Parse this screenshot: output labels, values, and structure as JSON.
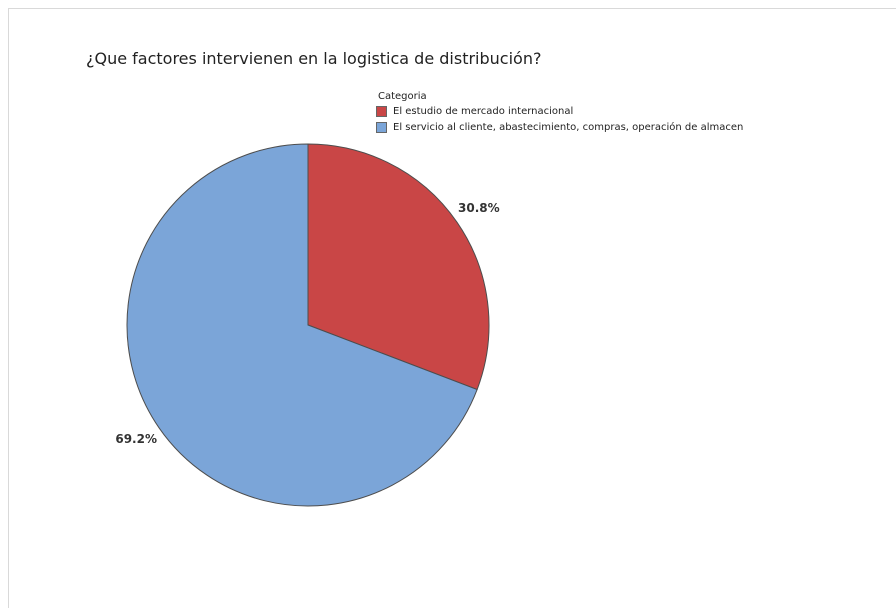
{
  "chart_data": {
    "type": "pie",
    "title": "¿Que factores intervienen en la logistica de distribución?",
    "legend": {
      "title": "Categoria",
      "placement": "top-right"
    },
    "slices": [
      {
        "name": "El estudio de mercado internacional",
        "value": 30.8,
        "label": "30.8%",
        "color": "#c94646"
      },
      {
        "name": "El servicio al cliente, abastecimiento, compras, operación de almacen",
        "value": 69.2,
        "label": "69.2%",
        "color": "#7ba5d8"
      }
    ]
  }
}
